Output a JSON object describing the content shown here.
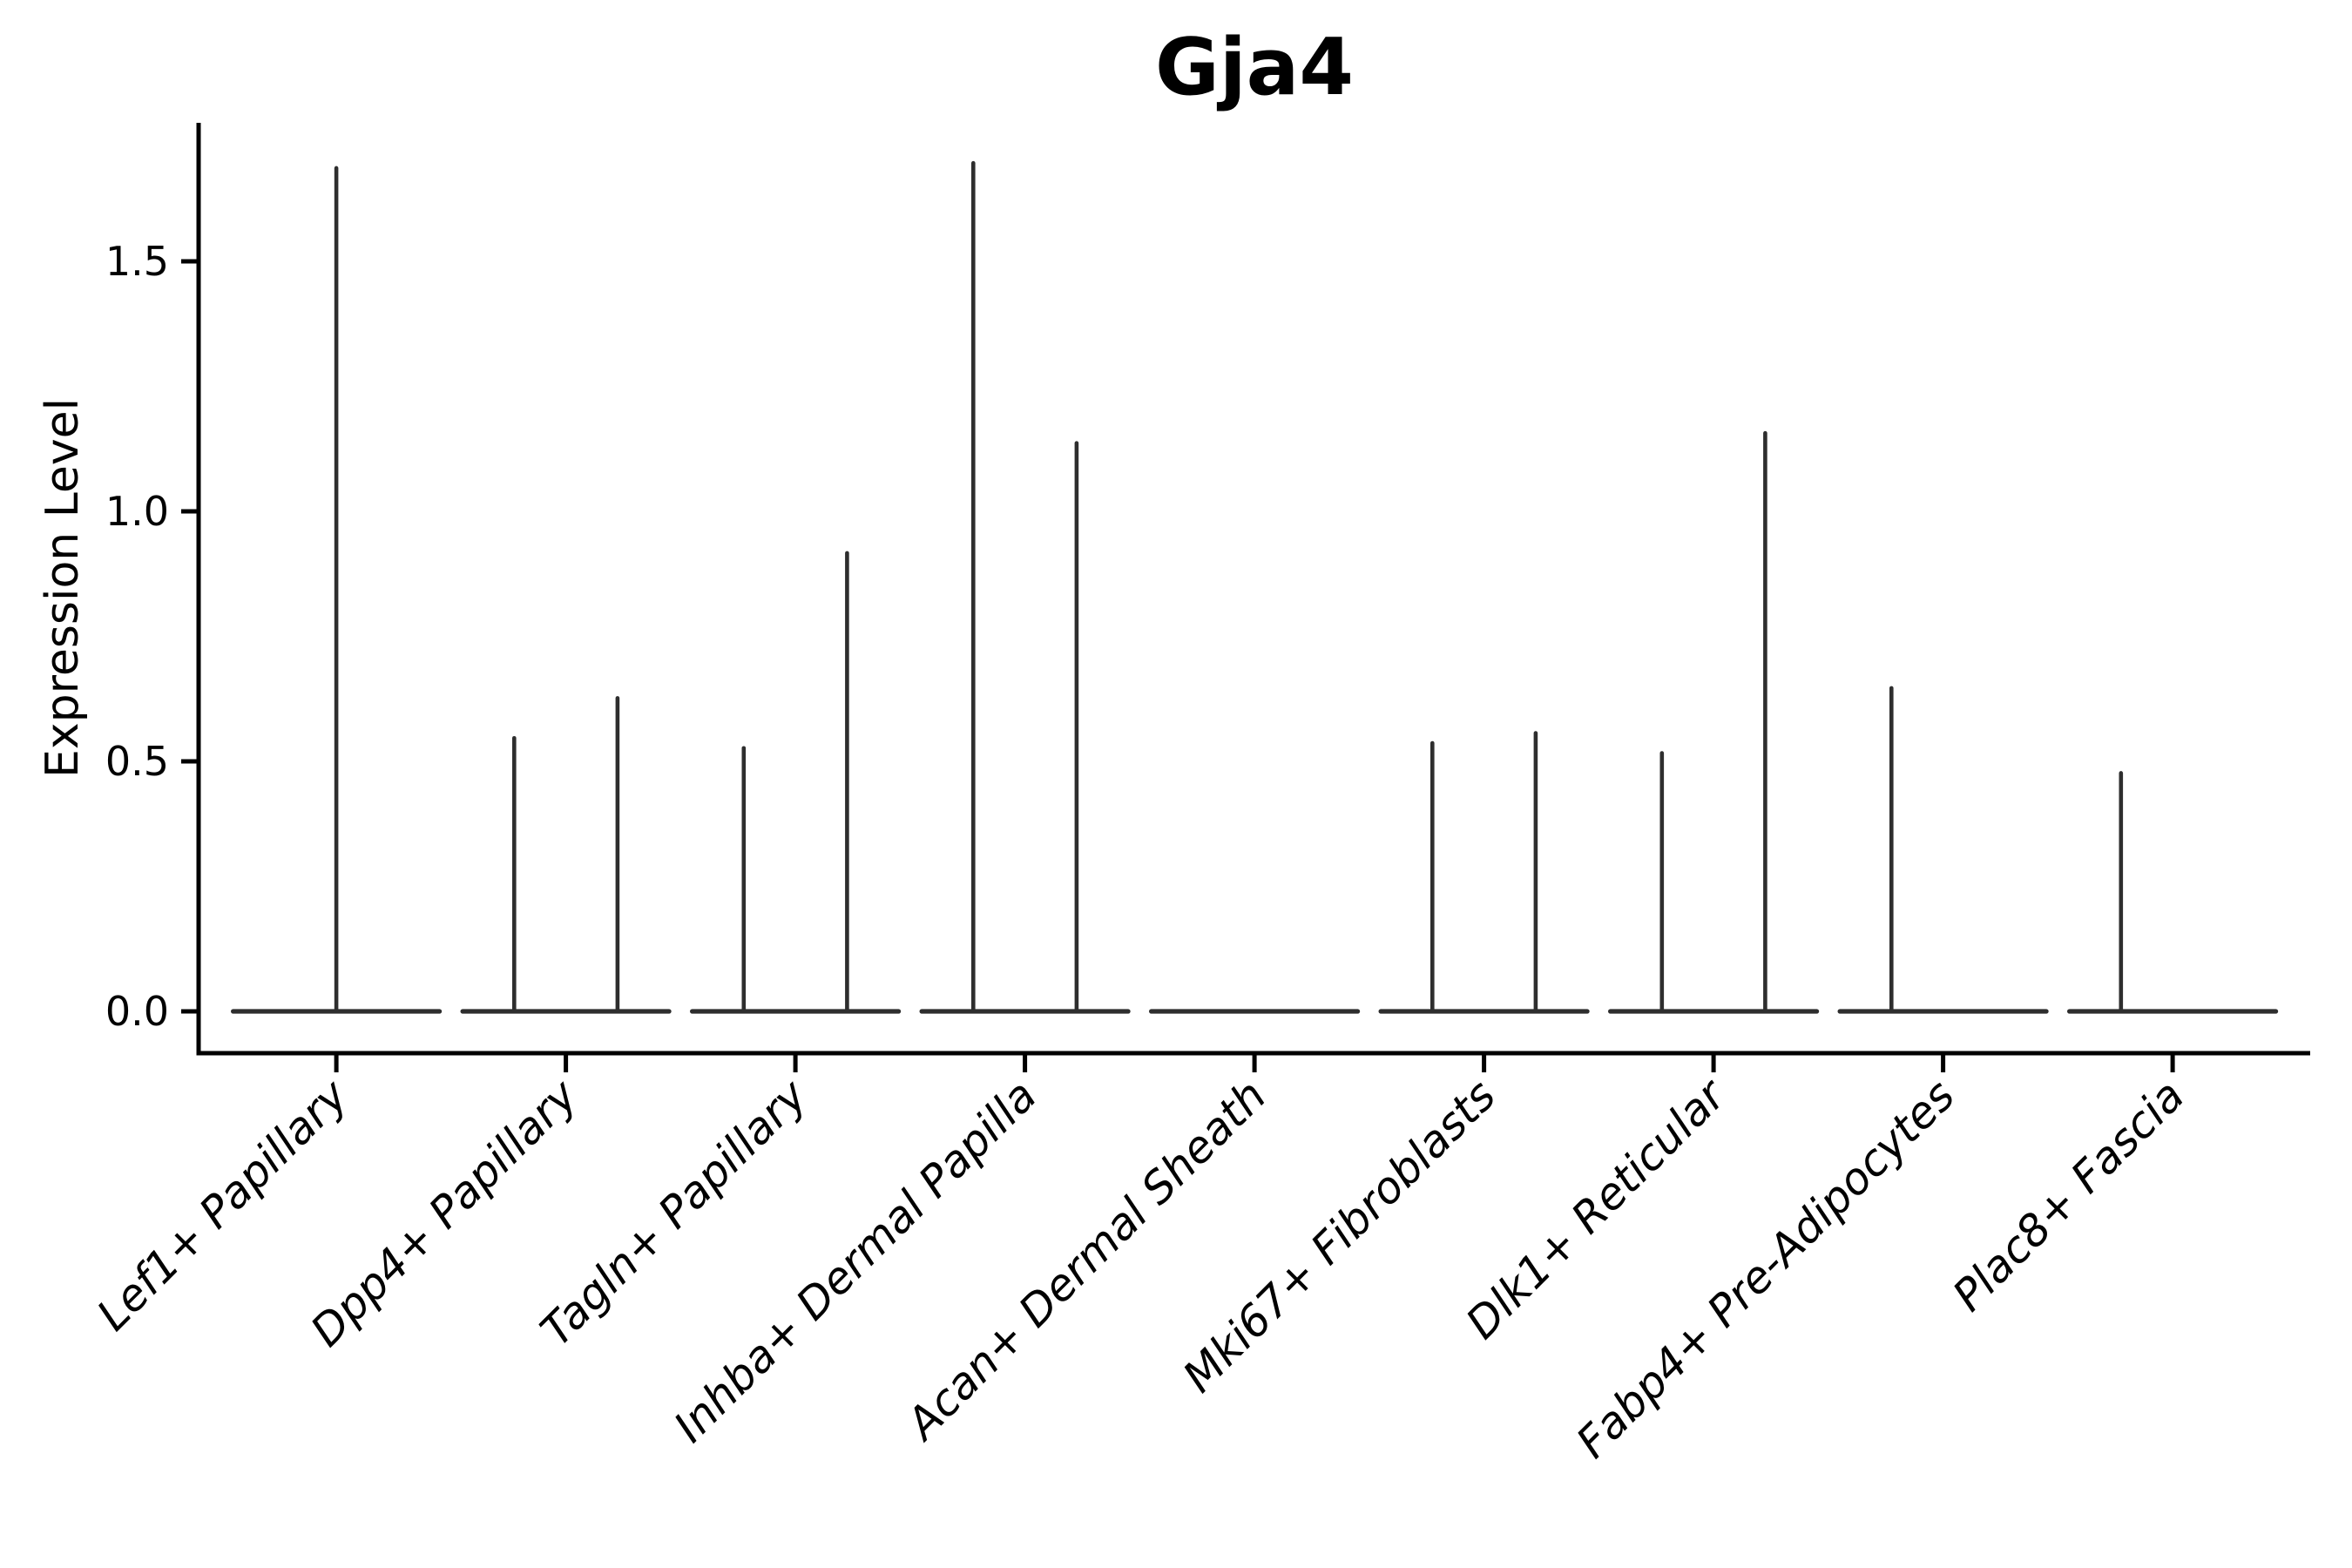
{
  "chart_data": {
    "type": "violin",
    "title": "Gja4",
    "xlabel": "",
    "ylabel": "Expression Level",
    "yticks": [
      0.0,
      0.5,
      1.0,
      1.5
    ],
    "ylim": [
      -0.08,
      1.78
    ],
    "grid": false,
    "legend": false,
    "violin_color": "#2e2e2e",
    "axis_color": "#000000",
    "categories": [
      {
        "label": "Lef1+ Papillary",
        "violins": [
          {
            "pos": "center",
            "peak": 1.69
          }
        ]
      },
      {
        "label": "Dpp4+ Papillary",
        "violins": [
          {
            "pos": "left",
            "peak": 0.55
          },
          {
            "pos": "right",
            "peak": 0.63
          }
        ]
      },
      {
        "label": "Tagln+ Papillary",
        "violins": [
          {
            "pos": "left",
            "peak": 0.53
          },
          {
            "pos": "right",
            "peak": 0.92
          }
        ]
      },
      {
        "label": "Inhba+ Dermal Papilla",
        "violins": [
          {
            "pos": "left",
            "peak": 1.7
          },
          {
            "pos": "right",
            "peak": 1.14
          }
        ]
      },
      {
        "label": "Acan+ Dermal Sheath",
        "violins": []
      },
      {
        "label": "Mki67+ Fibroblasts",
        "violins": [
          {
            "pos": "left",
            "peak": 0.54
          },
          {
            "pos": "right",
            "peak": 0.56
          }
        ]
      },
      {
        "label": "Dlk1+ Reticular",
        "violins": [
          {
            "pos": "left",
            "peak": 0.52
          },
          {
            "pos": "right",
            "peak": 1.16
          }
        ]
      },
      {
        "label": "Fabp4+ Pre-Adipocytes",
        "violins": [
          {
            "pos": "left",
            "peak": 0.65
          }
        ]
      },
      {
        "label": "Plac8+ Fascia",
        "violins": [
          {
            "pos": "left",
            "peak": 0.48
          }
        ]
      }
    ]
  }
}
